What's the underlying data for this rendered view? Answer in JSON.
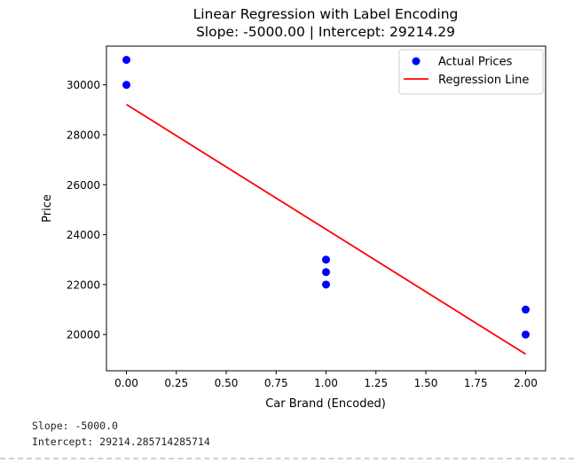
{
  "chart_data": {
    "type": "scatter",
    "title": "Linear Regression with Label Encoding",
    "subtitle": "Slope: -5000.00 | Intercept: 29214.29",
    "xlabel": "Car Brand (Encoded)",
    "ylabel": "Price",
    "xlim": [
      -0.1,
      2.1
    ],
    "ylim": [
      18550,
      31550
    ],
    "xticks": [
      "0.00",
      "0.25",
      "0.50",
      "0.75",
      "1.00",
      "1.25",
      "1.50",
      "1.75",
      "2.00"
    ],
    "yticks": [
      "20000",
      "22000",
      "24000",
      "26000",
      "28000",
      "30000"
    ],
    "grid": false,
    "legend_position": "top-right",
    "series": [
      {
        "name": "Actual Prices",
        "kind": "scatter",
        "color": "#0000ff",
        "x": [
          0,
          0,
          1,
          1,
          1,
          2,
          2
        ],
        "y": [
          31000,
          30000,
          23000,
          22500,
          22000,
          21000,
          20000
        ]
      },
      {
        "name": "Regression Line",
        "kind": "line",
        "color": "#ff0000",
        "x": [
          0,
          2
        ],
        "y": [
          29214.29,
          19214.29
        ]
      }
    ]
  },
  "output": {
    "slope_line": "Slope: -5000.0",
    "intercept_line": "Intercept: 29214.285714285714"
  }
}
